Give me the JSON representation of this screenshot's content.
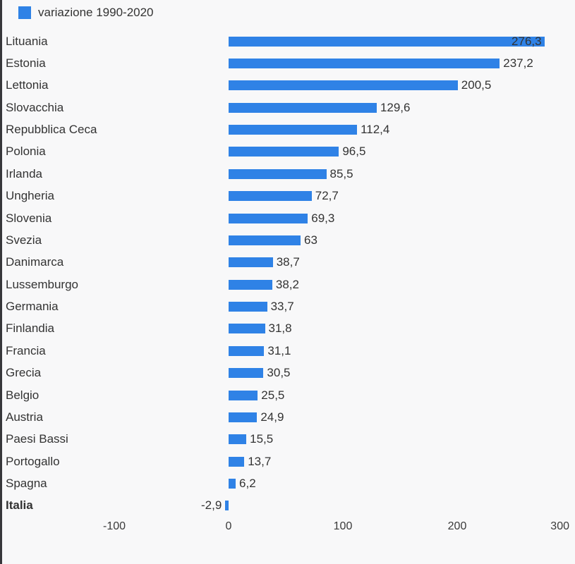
{
  "legend": {
    "label": "variazione 1990-2020",
    "swatch_color": "#2f82e6"
  },
  "colors": {
    "bar": "#2f82e6",
    "label_text": "#333333",
    "axis_text": "#3a3a3a",
    "background": "#f8f8f9",
    "left_border": "#37373a"
  },
  "chart_data": {
    "type": "bar",
    "orientation": "horizontal",
    "legend_label": "variazione 1990-2020",
    "legend_position": "top-left",
    "grid": false,
    "categories": [
      "Lituania",
      "Estonia",
      "Lettonia",
      "Slovacchia",
      "Repubblica Ceca",
      "Polonia",
      "Irlanda",
      "Ungheria",
      "Slovenia",
      "Svezia",
      "Danimarca",
      "Lussemburgo",
      "Germania",
      "Finlandia",
      "Francia",
      "Grecia",
      "Belgio",
      "Austria",
      "Paesi Bassi",
      "Portogallo",
      "Spagna",
      "Italia"
    ],
    "values": [
      276.3,
      237.2,
      200.5,
      129.6,
      112.4,
      96.5,
      85.5,
      72.7,
      69.3,
      63,
      38.7,
      38.2,
      33.7,
      31.8,
      31.1,
      30.5,
      25.5,
      24.9,
      15.5,
      13.7,
      6.2,
      -2.9
    ],
    "value_labels": [
      "276,3",
      "237,2",
      "200,5",
      "129,6",
      "112,4",
      "96,5",
      "85,5",
      "72,7",
      "69,3",
      "63",
      "38,7",
      "38,2",
      "33,7",
      "31,8",
      "31,1",
      "30,5",
      "25,5",
      "24,9",
      "15,5",
      "13,7",
      "6,2",
      "-2,9"
    ],
    "bold_categories": [
      "Italia"
    ],
    "x_ticks": [
      -100,
      0,
      100,
      200,
      300
    ],
    "x_tick_labels": [
      "-100",
      "0",
      "100",
      "200",
      "300"
    ],
    "xlim": [
      -100,
      300
    ]
  }
}
